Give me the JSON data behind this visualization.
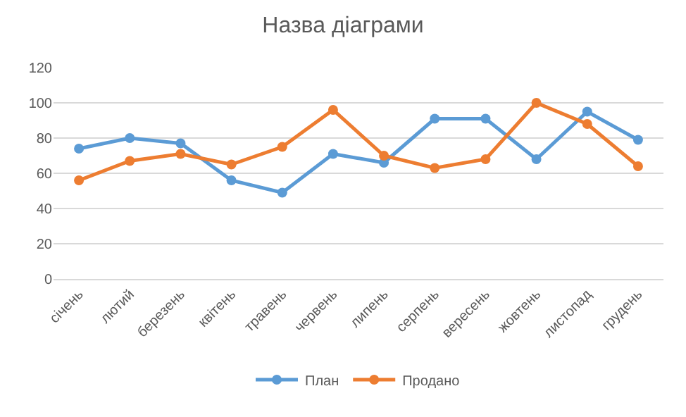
{
  "chart_data": {
    "type": "line",
    "title": "Назва діаграми",
    "categories": [
      "січень",
      "лютий",
      "березень",
      "квітень",
      "травень",
      "червень",
      "липень",
      "серпень",
      "вересень",
      "жовтень",
      "листопад",
      "грудень"
    ],
    "series": [
      {
        "name": "План",
        "color": "#5b9bd5",
        "values": [
          74,
          80,
          77,
          56,
          49,
          71,
          66,
          91,
          91,
          68,
          95,
          79
        ]
      },
      {
        "name": "Продано",
        "color": "#ed7d31",
        "values": [
          56,
          67,
          71,
          65,
          75,
          96,
          70,
          63,
          68,
          100,
          88,
          64
        ]
      }
    ],
    "ylim": [
      0,
      120
    ],
    "yticks": [
      0,
      20,
      40,
      60,
      80,
      100,
      120
    ],
    "grid": "y",
    "legend": "bottom",
    "marker": "circle",
    "line_style": "solid"
  }
}
